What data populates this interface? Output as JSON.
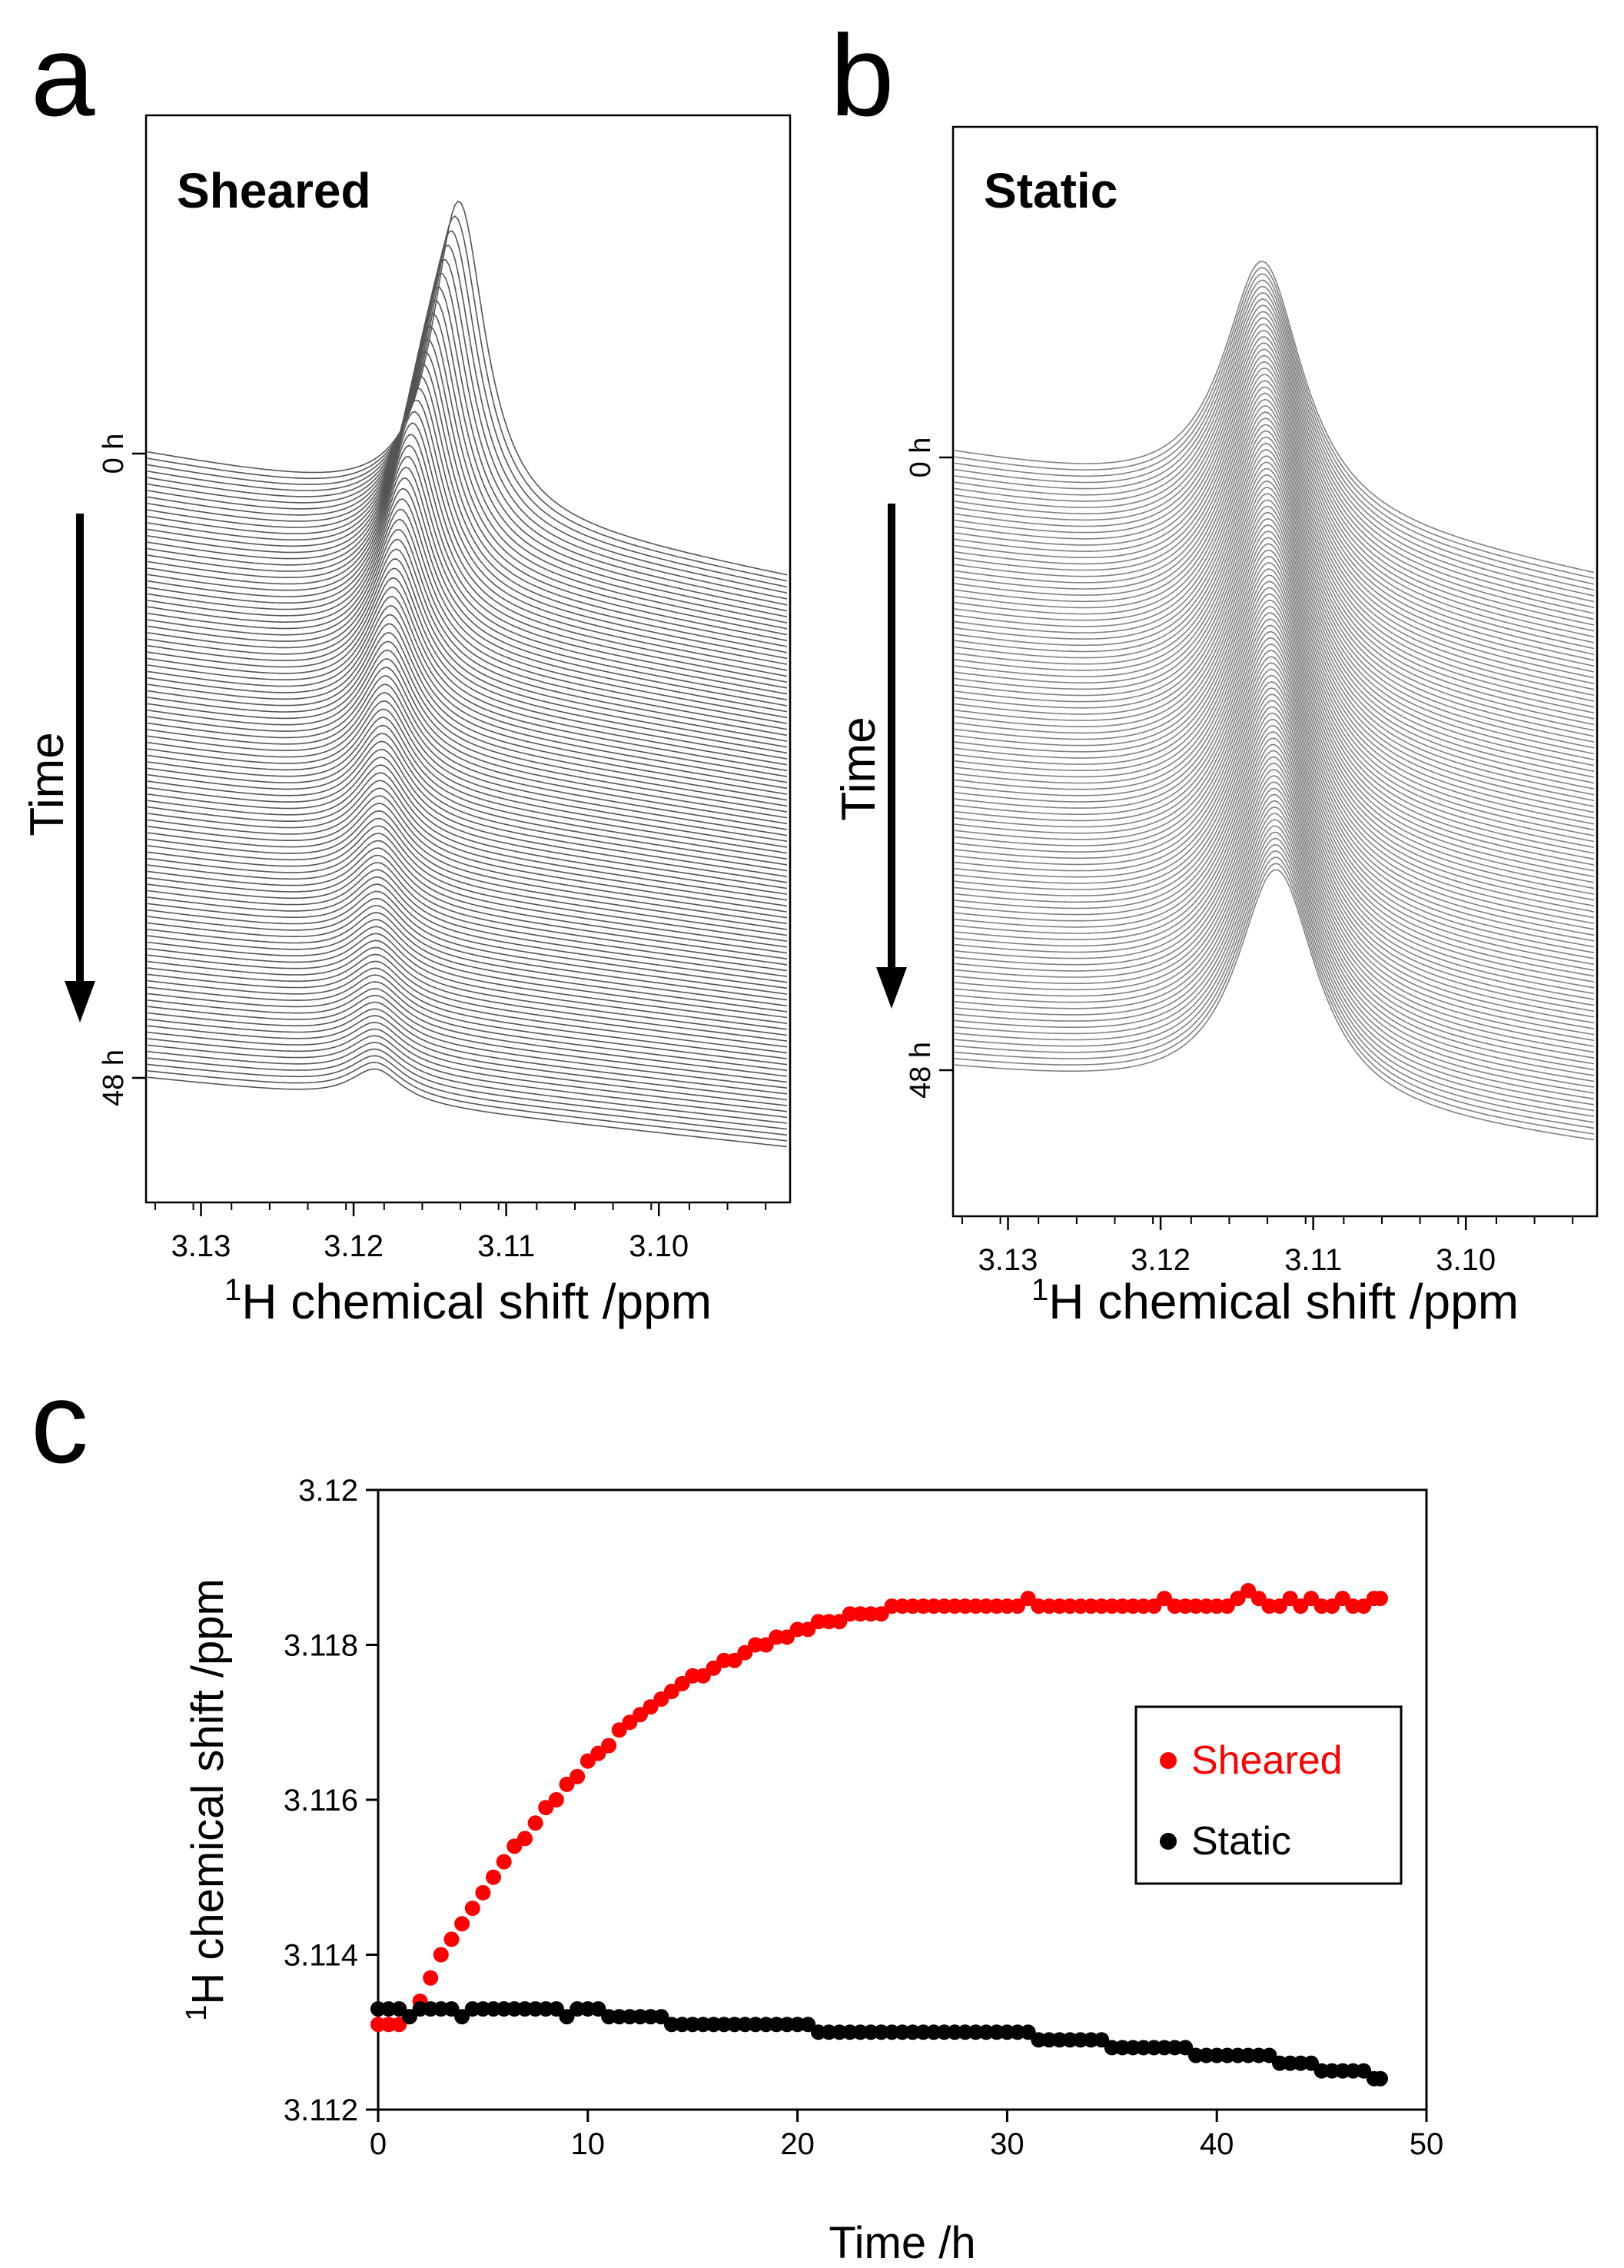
{
  "panel_a": {
    "letter": "a",
    "label": "Sheared",
    "time_label": "Time",
    "start_label": "0 h",
    "end_label": "48 h",
    "xlabel_sup": "1",
    "xlabel_rest": "H chemical shift /ppm"
  },
  "panel_b": {
    "letter": "b",
    "label": "Static",
    "time_label": "Time",
    "start_label": "0 h",
    "end_label": "48 h",
    "xlabel_sup": "1",
    "xlabel_rest": "H chemical shift /ppm"
  },
  "panel_c": {
    "letter": "c",
    "ylabel_sup": "1",
    "ylabel_rest": "H chemical shift /ppm",
    "xlabel": "Time /h"
  },
  "chart_data": [
    {
      "type": "line",
      "subtype": "stacked spectra (waterfall)",
      "panel": "a",
      "label": "Sheared",
      "x_axis": {
        "ticks": [
          3.13,
          3.12,
          3.11,
          3.1
        ],
        "reversed": true,
        "range": [
          3.1335,
          3.0915
        ]
      },
      "time_range_h": [
        0,
        48
      ],
      "n_spectra": 98,
      "peak_position_ppm": {
        "first": 3.1131,
        "last": 3.1186
      },
      "peak_height_trend": "decreasing with time",
      "line_color": "#555555"
    },
    {
      "type": "line",
      "subtype": "stacked spectra (waterfall)",
      "panel": "b",
      "label": "Static",
      "x_axis": {
        "ticks": [
          3.13,
          3.12,
          3.11,
          3.1
        ],
        "reversed": true,
        "range": [
          3.1335,
          3.0915
        ]
      },
      "time_range_h": [
        0,
        48
      ],
      "n_spectra": 98,
      "peak_position_ppm": {
        "first": 3.1133,
        "last": 3.1124
      },
      "peak_height_trend": "nearly constant",
      "line_color": "#808080"
    },
    {
      "type": "scatter",
      "panel": "c",
      "xlabel": "Time /h",
      "ylabel": "1H chemical shift /ppm",
      "xlim": [
        0,
        50
      ],
      "ylim": [
        3.112,
        3.12
      ],
      "xticks": [
        0,
        10,
        20,
        30,
        40,
        50
      ],
      "yticks": [
        3.112,
        3.114,
        3.116,
        3.118,
        3.12
      ],
      "ytick_labels": [
        "3.112",
        "3.114",
        "3.116",
        "3.118",
        "3.12"
      ],
      "grid": false,
      "legend_position": "right, middle",
      "series": [
        {
          "name": "Sheared",
          "color": "#ff0000",
          "x": [
            0.0,
            0.5,
            1.0,
            1.5,
            2.0,
            2.5,
            3.0,
            3.5,
            4.0,
            4.5,
            5.0,
            5.5,
            6.0,
            6.5,
            7.0,
            7.5,
            8.0,
            8.5,
            9.0,
            9.5,
            10.0,
            10.5,
            11.0,
            11.5,
            12.0,
            12.5,
            13.0,
            13.5,
            14.0,
            14.5,
            15.0,
            15.5,
            16.0,
            16.5,
            17.0,
            17.5,
            18.0,
            18.5,
            19.0,
            19.5,
            20.0,
            20.5,
            21.0,
            21.5,
            22.0,
            22.5,
            23.0,
            23.5,
            24.0,
            24.5,
            25.0,
            25.5,
            26.0,
            26.5,
            27.0,
            27.5,
            28.0,
            28.5,
            29.0,
            29.5,
            30.0,
            30.5,
            31.0,
            31.5,
            32.0,
            32.5,
            33.0,
            33.5,
            34.0,
            34.5,
            35.0,
            35.5,
            36.0,
            36.5,
            37.0,
            37.5,
            38.0,
            38.5,
            39.0,
            39.5,
            40.0,
            40.5,
            41.0,
            41.5,
            42.0,
            42.5,
            43.0,
            43.5,
            44.0,
            44.5,
            45.0,
            45.5,
            46.0,
            46.5,
            47.0,
            47.5,
            47.8
          ],
          "y": [
            3.1131,
            3.1131,
            3.1131,
            3.1132,
            3.1134,
            3.1137,
            3.114,
            3.1142,
            3.1144,
            3.1146,
            3.1148,
            3.115,
            3.1152,
            3.1154,
            3.1155,
            3.1157,
            3.1159,
            3.116,
            3.1162,
            3.1163,
            3.1165,
            3.1166,
            3.1167,
            3.1169,
            3.117,
            3.1171,
            3.1172,
            3.1173,
            3.1174,
            3.1175,
            3.1176,
            3.1176,
            3.1177,
            3.1178,
            3.1178,
            3.1179,
            3.118,
            3.118,
            3.1181,
            3.1181,
            3.1182,
            3.1182,
            3.1183,
            3.1183,
            3.1183,
            3.1184,
            3.1184,
            3.1184,
            3.1184,
            3.1185,
            3.1185,
            3.1185,
            3.1185,
            3.1185,
            3.1185,
            3.1185,
            3.1185,
            3.1185,
            3.1185,
            3.1185,
            3.1185,
            3.1185,
            3.1186,
            3.1185,
            3.1185,
            3.1185,
            3.1185,
            3.1185,
            3.1185,
            3.1185,
            3.1185,
            3.1185,
            3.1185,
            3.1185,
            3.1185,
            3.1186,
            3.1185,
            3.1185,
            3.1185,
            3.1185,
            3.1185,
            3.1185,
            3.1186,
            3.1187,
            3.1186,
            3.1185,
            3.1185,
            3.1186,
            3.1185,
            3.1186,
            3.1185,
            3.1185,
            3.1186,
            3.1185,
            3.1185,
            3.1186,
            3.1186
          ]
        },
        {
          "name": "Static",
          "color": "#000000",
          "x": [
            0.0,
            0.5,
            1.0,
            1.5,
            2.0,
            2.5,
            3.0,
            3.5,
            4.0,
            4.5,
            5.0,
            5.5,
            6.0,
            6.5,
            7.0,
            7.5,
            8.0,
            8.5,
            9.0,
            9.5,
            10.0,
            10.5,
            11.0,
            11.5,
            12.0,
            12.5,
            13.0,
            13.5,
            14.0,
            14.5,
            15.0,
            15.5,
            16.0,
            16.5,
            17.0,
            17.5,
            18.0,
            18.5,
            19.0,
            19.5,
            20.0,
            20.5,
            21.0,
            21.5,
            22.0,
            22.5,
            23.0,
            23.5,
            24.0,
            24.5,
            25.0,
            25.5,
            26.0,
            26.5,
            27.0,
            27.5,
            28.0,
            28.5,
            29.0,
            29.5,
            30.0,
            30.5,
            31.0,
            31.5,
            32.0,
            32.5,
            33.0,
            33.5,
            34.0,
            34.5,
            35.0,
            35.5,
            36.0,
            36.5,
            37.0,
            37.5,
            38.0,
            38.5,
            39.0,
            39.5,
            40.0,
            40.5,
            41.0,
            41.5,
            42.0,
            42.5,
            43.0,
            43.5,
            44.0,
            44.5,
            45.0,
            45.5,
            46.0,
            46.5,
            47.0,
            47.5,
            47.8
          ],
          "y": [
            3.1133,
            3.1133,
            3.1133,
            3.1132,
            3.1133,
            3.1133,
            3.1133,
            3.1133,
            3.1132,
            3.1133,
            3.1133,
            3.1133,
            3.1133,
            3.1133,
            3.1133,
            3.1133,
            3.1133,
            3.1133,
            3.1132,
            3.1133,
            3.1133,
            3.1133,
            3.1132,
            3.1132,
            3.1132,
            3.1132,
            3.1132,
            3.1132,
            3.1131,
            3.1131,
            3.1131,
            3.1131,
            3.1131,
            3.1131,
            3.1131,
            3.1131,
            3.1131,
            3.1131,
            3.1131,
            3.1131,
            3.1131,
            3.1131,
            3.113,
            3.113,
            3.113,
            3.113,
            3.113,
            3.113,
            3.113,
            3.113,
            3.113,
            3.113,
            3.113,
            3.113,
            3.113,
            3.113,
            3.113,
            3.113,
            3.113,
            3.113,
            3.113,
            3.113,
            3.113,
            3.1129,
            3.1129,
            3.1129,
            3.1129,
            3.1129,
            3.1129,
            3.1129,
            3.1128,
            3.1128,
            3.1128,
            3.1128,
            3.1128,
            3.1128,
            3.1128,
            3.1128,
            3.1127,
            3.1127,
            3.1127,
            3.1127,
            3.1127,
            3.1127,
            3.1127,
            3.1127,
            3.1126,
            3.1126,
            3.1126,
            3.1126,
            3.1125,
            3.1125,
            3.1125,
            3.1125,
            3.1125,
            3.1124,
            3.1124
          ]
        }
      ]
    }
  ]
}
